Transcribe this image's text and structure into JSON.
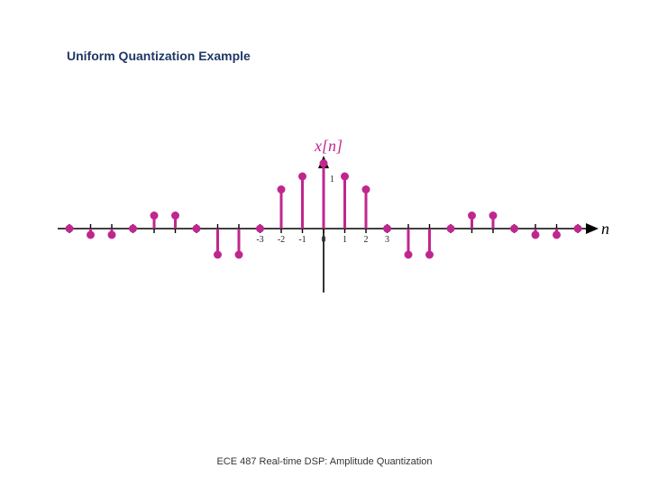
{
  "slide": {
    "title": "Uniform Quantization Example",
    "footer": "ECE 487 Real-time DSP: Amplitude Quantization"
  },
  "chart_data": {
    "type": "stem",
    "title": "",
    "ylabel": "x[n]",
    "xlabel": "n",
    "y_tick_label": "1",
    "x_tick_labels": [
      "-3",
      "-2",
      "-1",
      "0",
      "1",
      "2",
      "3"
    ],
    "x": [
      -12,
      -11,
      -10,
      -9,
      -8,
      -7,
      -6,
      -5,
      -4,
      -3,
      -2,
      -1,
      0,
      1,
      2,
      3,
      4,
      5,
      6,
      7,
      8,
      9,
      10,
      11,
      12
    ],
    "values": [
      0,
      -0.12,
      -0.12,
      0,
      0.25,
      0.25,
      0,
      -0.5,
      -0.5,
      0,
      0.75,
      1,
      1.25,
      1,
      0.75,
      0,
      -0.5,
      -0.5,
      0,
      0.25,
      0.25,
      0,
      -0.12,
      -0.12,
      0
    ],
    "stem_color": "#c0278e",
    "axis_color": "#000000"
  }
}
